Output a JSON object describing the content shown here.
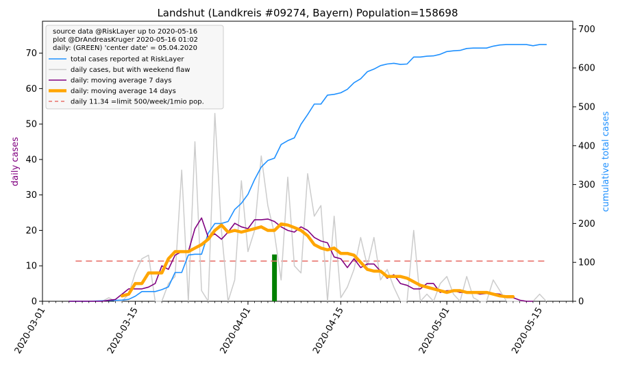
{
  "chart_data": {
    "type": "line",
    "title": "Landshut (Landkreis #09274, Bayern) Population=158698",
    "ylabel_left": "daily cases",
    "ylabel_right": "cumulative total cases",
    "colors": {
      "ylabel_left": "#800080",
      "ylabel_right": "#1E90FF",
      "total": "#1E90FF",
      "daily": "#CCCCCC",
      "ma7": "#800080",
      "ma14": "#FFA500",
      "limit": "#E8706A",
      "center_bar": "#008000"
    },
    "x_domain": [
      "2020-03-01",
      "2020-05-20"
    ],
    "x_ticks": [
      "2020-03-01",
      "2020-03-15",
      "2020-04-01",
      "2020-04-15",
      "2020-05-01",
      "2020-05-15"
    ],
    "ylim_left": [
      0,
      79
    ],
    "yticks_left": [
      0,
      10,
      20,
      30,
      40,
      50,
      60,
      70
    ],
    "ylim_right": [
      0,
      720
    ],
    "yticks_right": [
      0,
      100,
      200,
      300,
      400,
      500,
      600,
      700
    ],
    "legend": {
      "position": "upper-left",
      "header": [
        "source data @RiskLayer up to 2020-05-16",
        "plot @DrAndreasKruger 2020-05-16 01:02",
        "daily: (GREEN) 'center date' = 05.04.2020"
      ],
      "entries": [
        {
          "key": "total",
          "label": "total cases reported at RiskLayer"
        },
        {
          "key": "daily",
          "label": "daily cases, but with weekend flaw"
        },
        {
          "key": "ma7",
          "label": "daily: moving average 7 days"
        },
        {
          "key": "ma14",
          "label": "daily: moving average 14 days"
        },
        {
          "key": "limit",
          "label": "daily 11.34 =limit 500/week/1mio pop."
        }
      ]
    },
    "center_bar": {
      "date": "2020-04-05",
      "value": 13.2
    },
    "limit": {
      "value": 11.34,
      "x_start": "2020-03-06",
      "x_end": "2020-05-16"
    },
    "series": [
      {
        "key": "total",
        "axis": "right",
        "points": [
          [
            "2020-03-05",
            0
          ],
          [
            "2020-03-08",
            0
          ],
          [
            "2020-03-11",
            2
          ],
          [
            "2020-03-13",
            3
          ],
          [
            "2020-03-14",
            5
          ],
          [
            "2020-03-15",
            13
          ],
          [
            "2020-03-16",
            25
          ],
          [
            "2020-03-17",
            25
          ],
          [
            "2020-03-18",
            25
          ],
          [
            "2020-03-19",
            30
          ],
          [
            "2020-03-20",
            37
          ],
          [
            "2020-03-21",
            74
          ],
          [
            "2020-03-22",
            74
          ],
          [
            "2020-03-23",
            119
          ],
          [
            "2020-03-24",
            121
          ],
          [
            "2020-03-25",
            121
          ],
          [
            "2020-03-26",
            175
          ],
          [
            "2020-03-27",
            200
          ],
          [
            "2020-03-28",
            200
          ],
          [
            "2020-03-29",
            205
          ],
          [
            "2020-03-30",
            236
          ],
          [
            "2020-03-31",
            252
          ],
          [
            "2020-04-01",
            275
          ],
          [
            "2020-04-02",
            313
          ],
          [
            "2020-04-03",
            345
          ],
          [
            "2020-04-04",
            362
          ],
          [
            "2020-04-05",
            368
          ],
          [
            "2020-04-06",
            403
          ],
          [
            "2020-04-07",
            413
          ],
          [
            "2020-04-08",
            420
          ],
          [
            "2020-04-09",
            455
          ],
          [
            "2020-04-10",
            480
          ],
          [
            "2020-04-11",
            507
          ],
          [
            "2020-04-12",
            507
          ],
          [
            "2020-04-13",
            530
          ],
          [
            "2020-04-14",
            532
          ],
          [
            "2020-04-15",
            536
          ],
          [
            "2020-04-16",
            545
          ],
          [
            "2020-04-17",
            562
          ],
          [
            "2020-04-18",
            572
          ],
          [
            "2020-04-19",
            590
          ],
          [
            "2020-04-20",
            597
          ],
          [
            "2020-04-21",
            606
          ],
          [
            "2020-04-22",
            610
          ],
          [
            "2020-04-23",
            612
          ],
          [
            "2020-04-24",
            609
          ],
          [
            "2020-04-25",
            610
          ],
          [
            "2020-04-26",
            628
          ],
          [
            "2020-04-27",
            628
          ],
          [
            "2020-04-28",
            630
          ],
          [
            "2020-04-29",
            631
          ],
          [
            "2020-04-30",
            635
          ],
          [
            "2020-05-01",
            642
          ],
          [
            "2020-05-02",
            644
          ],
          [
            "2020-05-03",
            645
          ],
          [
            "2020-05-04",
            650
          ],
          [
            "2020-05-05",
            651
          ],
          [
            "2020-05-06",
            651
          ],
          [
            "2020-05-07",
            651
          ],
          [
            "2020-05-08",
            656
          ],
          [
            "2020-05-09",
            659
          ],
          [
            "2020-05-10",
            660
          ],
          [
            "2020-05-11",
            660
          ],
          [
            "2020-05-12",
            660
          ],
          [
            "2020-05-13",
            660
          ],
          [
            "2020-05-14",
            657
          ],
          [
            "2020-05-15",
            660
          ],
          [
            "2020-05-16",
            660
          ]
        ]
      },
      {
        "key": "daily",
        "axis": "left",
        "points": [
          [
            "2020-03-05",
            0
          ],
          [
            "2020-03-10",
            0
          ],
          [
            "2020-03-11",
            1
          ],
          [
            "2020-03-12",
            0
          ],
          [
            "2020-03-13",
            0
          ],
          [
            "2020-03-14",
            2
          ],
          [
            "2020-03-15",
            8
          ],
          [
            "2020-03-16",
            12
          ],
          [
            "2020-03-17",
            13
          ],
          [
            "2020-03-18",
            0
          ],
          [
            "2020-03-19",
            0
          ],
          [
            "2020-03-20",
            5
          ],
          [
            "2020-03-21",
            7
          ],
          [
            "2020-03-22",
            37
          ],
          [
            "2020-03-23",
            0
          ],
          [
            "2020-03-24",
            45
          ],
          [
            "2020-03-25",
            3
          ],
          [
            "2020-03-26",
            0
          ],
          [
            "2020-03-27",
            53
          ],
          [
            "2020-03-28",
            20
          ],
          [
            "2020-03-29",
            0
          ],
          [
            "2020-03-30",
            6
          ],
          [
            "2020-03-31",
            34
          ],
          [
            "2020-04-01",
            14
          ],
          [
            "2020-04-02",
            20
          ],
          [
            "2020-04-03",
            41
          ],
          [
            "2020-04-04",
            27
          ],
          [
            "2020-04-05",
            19
          ],
          [
            "2020-04-06",
            6
          ],
          [
            "2020-04-07",
            35
          ],
          [
            "2020-04-08",
            10
          ],
          [
            "2020-04-09",
            8
          ],
          [
            "2020-04-10",
            36
          ],
          [
            "2020-04-11",
            24
          ],
          [
            "2020-04-12",
            27
          ],
          [
            "2020-04-13",
            0
          ],
          [
            "2020-04-14",
            24
          ],
          [
            "2020-04-15",
            1
          ],
          [
            "2020-04-16",
            4
          ],
          [
            "2020-04-17",
            9
          ],
          [
            "2020-04-18",
            18
          ],
          [
            "2020-04-19",
            10
          ],
          [
            "2020-04-20",
            18
          ],
          [
            "2020-04-21",
            6
          ],
          [
            "2020-04-22",
            9
          ],
          [
            "2020-04-23",
            4
          ],
          [
            "2020-04-24",
            0
          ],
          [
            "2020-04-25",
            0
          ],
          [
            "2020-04-26",
            20
          ],
          [
            "2020-04-27",
            0
          ],
          [
            "2020-04-28",
            2
          ],
          [
            "2020-04-29",
            0
          ],
          [
            "2020-04-30",
            5
          ],
          [
            "2020-05-01",
            7
          ],
          [
            "2020-05-02",
            2
          ],
          [
            "2020-05-03",
            0
          ],
          [
            "2020-05-04",
            7
          ],
          [
            "2020-05-05",
            1
          ],
          [
            "2020-05-06",
            0
          ],
          [
            "2020-05-07",
            0
          ],
          [
            "2020-05-08",
            6
          ],
          [
            "2020-05-09",
            3
          ],
          [
            "2020-05-10",
            0
          ],
          [
            "2020-05-11",
            0
          ],
          [
            "2020-05-12",
            0
          ],
          [
            "2020-05-13",
            0
          ],
          [
            "2020-05-14",
            0
          ],
          [
            "2020-05-15",
            2
          ],
          [
            "2020-05-16",
            0
          ]
        ]
      },
      {
        "key": "ma7",
        "axis": "left",
        "points": [
          [
            "2020-03-05",
            0
          ],
          [
            "2020-03-10",
            0
          ],
          [
            "2020-03-11",
            0.3
          ],
          [
            "2020-03-12",
            0.5
          ],
          [
            "2020-03-13",
            2
          ],
          [
            "2020-03-14",
            3.5
          ],
          [
            "2020-03-15",
            3.5
          ],
          [
            "2020-03-16",
            3.5
          ],
          [
            "2020-03-17",
            4
          ],
          [
            "2020-03-18",
            5
          ],
          [
            "2020-03-19",
            10
          ],
          [
            "2020-03-20",
            9
          ],
          [
            "2020-03-21",
            13
          ],
          [
            "2020-03-22",
            14
          ],
          [
            "2020-03-23",
            14
          ],
          [
            "2020-03-24",
            20.5
          ],
          [
            "2020-03-25",
            23.5
          ],
          [
            "2020-03-26",
            18
          ],
          [
            "2020-03-27",
            19
          ],
          [
            "2020-03-28",
            17.5
          ],
          [
            "2020-03-29",
            19.5
          ],
          [
            "2020-03-30",
            22
          ],
          [
            "2020-03-31",
            21
          ],
          [
            "2020-04-01",
            20.5
          ],
          [
            "2020-04-02",
            23
          ],
          [
            "2020-04-03",
            23
          ],
          [
            "2020-04-04",
            23.2
          ],
          [
            "2020-04-05",
            22.5
          ],
          [
            "2020-04-06",
            21
          ],
          [
            "2020-04-07",
            20
          ],
          [
            "2020-04-08",
            19.5
          ],
          [
            "2020-04-09",
            21
          ],
          [
            "2020-04-10",
            20
          ],
          [
            "2020-04-11",
            18
          ],
          [
            "2020-04-12",
            17
          ],
          [
            "2020-04-13",
            16.5
          ],
          [
            "2020-04-14",
            12.5
          ],
          [
            "2020-04-15",
            12
          ],
          [
            "2020-04-16",
            9.5
          ],
          [
            "2020-04-17",
            12
          ],
          [
            "2020-04-18",
            9.5
          ],
          [
            "2020-04-19",
            10.5
          ],
          [
            "2020-04-20",
            10.5
          ],
          [
            "2020-04-21",
            8.5
          ],
          [
            "2020-04-22",
            6.5
          ],
          [
            "2020-04-23",
            7.5
          ],
          [
            "2020-04-24",
            5
          ],
          [
            "2020-04-25",
            4.5
          ],
          [
            "2020-04-26",
            3.5
          ],
          [
            "2020-04-27",
            3.5
          ],
          [
            "2020-04-28",
            5
          ],
          [
            "2020-04-29",
            5
          ],
          [
            "2020-04-30",
            2.5
          ],
          [
            "2020-05-01",
            3
          ],
          [
            "2020-05-02",
            3
          ],
          [
            "2020-05-03",
            2.5
          ],
          [
            "2020-05-04",
            2.5
          ],
          [
            "2020-05-05",
            2.5
          ],
          [
            "2020-05-06",
            2
          ],
          [
            "2020-05-07",
            2.2
          ],
          [
            "2020-05-08",
            2.2
          ],
          [
            "2020-05-09",
            2
          ],
          [
            "2020-05-10",
            1
          ],
          [
            "2020-05-11",
            1
          ],
          [
            "2020-05-12",
            0.3
          ],
          [
            "2020-05-13",
            0
          ],
          [
            "2020-05-14",
            0
          ]
        ]
      },
      {
        "key": "ma14",
        "axis": "left",
        "points": [
          [
            "2020-03-13",
            1.5
          ],
          [
            "2020-03-14",
            2
          ],
          [
            "2020-03-15",
            5
          ],
          [
            "2020-03-16",
            5
          ],
          [
            "2020-03-17",
            8
          ],
          [
            "2020-03-18",
            8
          ],
          [
            "2020-03-19",
            8
          ],
          [
            "2020-03-20",
            12
          ],
          [
            "2020-03-21",
            14
          ],
          [
            "2020-03-22",
            14
          ],
          [
            "2020-03-23",
            14
          ],
          [
            "2020-03-24",
            15
          ],
          [
            "2020-03-25",
            16
          ],
          [
            "2020-03-26",
            17.5
          ],
          [
            "2020-03-27",
            20
          ],
          [
            "2020-03-28",
            21.5
          ],
          [
            "2020-03-29",
            19.5
          ],
          [
            "2020-03-30",
            20
          ],
          [
            "2020-03-31",
            19.5
          ],
          [
            "2020-04-01",
            20
          ],
          [
            "2020-04-02",
            20.5
          ],
          [
            "2020-04-03",
            21
          ],
          [
            "2020-04-04",
            20
          ],
          [
            "2020-04-05",
            20
          ],
          [
            "2020-04-06",
            21.8
          ],
          [
            "2020-04-07",
            21.5
          ],
          [
            "2020-04-08",
            20.8
          ],
          [
            "2020-04-09",
            20
          ],
          [
            "2020-04-10",
            18.5
          ],
          [
            "2020-04-11",
            16
          ],
          [
            "2020-04-12",
            15
          ],
          [
            "2020-04-13",
            14.5
          ],
          [
            "2020-04-14",
            15
          ],
          [
            "2020-04-15",
            13.5
          ],
          [
            "2020-04-16",
            13.5
          ],
          [
            "2020-04-17",
            13
          ],
          [
            "2020-04-18",
            11
          ],
          [
            "2020-04-19",
            9
          ],
          [
            "2020-04-20",
            8.5
          ],
          [
            "2020-04-21",
            8.5
          ],
          [
            "2020-04-22",
            7
          ],
          [
            "2020-04-23",
            7
          ],
          [
            "2020-04-24",
            7
          ],
          [
            "2020-04-25",
            6.5
          ],
          [
            "2020-04-26",
            5.5
          ],
          [
            "2020-04-27",
            4.5
          ],
          [
            "2020-04-28",
            4
          ],
          [
            "2020-04-29",
            3.5
          ],
          [
            "2020-04-30",
            3
          ],
          [
            "2020-05-01",
            2.5
          ],
          [
            "2020-05-02",
            3
          ],
          [
            "2020-05-03",
            3
          ],
          [
            "2020-05-04",
            2.5
          ],
          [
            "2020-05-05",
            2.5
          ],
          [
            "2020-05-06",
            2.5
          ],
          [
            "2020-05-07",
            2.5
          ],
          [
            "2020-05-08",
            2
          ],
          [
            "2020-05-09",
            1.5
          ],
          [
            "2020-05-10",
            1.3
          ],
          [
            "2020-05-11",
            1.3
          ]
        ]
      }
    ]
  }
}
